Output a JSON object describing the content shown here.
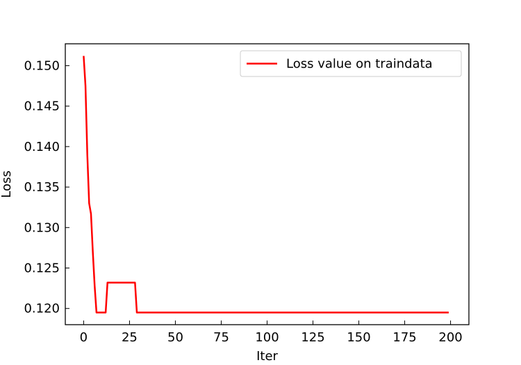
{
  "chart_data": {
    "type": "line",
    "title": "",
    "xlabel": "Iter",
    "ylabel": "Loss",
    "xlim": [
      -10,
      210
    ],
    "ylim": [
      0.118,
      0.1527
    ],
    "xticks": [
      0,
      25,
      50,
      75,
      100,
      125,
      150,
      175,
      200
    ],
    "yticks": [
      0.12,
      0.125,
      0.13,
      0.135,
      0.14,
      0.145,
      0.15
    ],
    "yticks_labels": [
      "0.120",
      "0.125",
      "0.130",
      "0.135",
      "0.140",
      "0.145",
      "0.150"
    ],
    "grid": false,
    "legend": {
      "placement": "top-right",
      "entries": [
        "Loss value on traindata"
      ]
    },
    "series": [
      {
        "name": "Loss value on traindata",
        "color": "#ff0000",
        "x": [
          0,
          1,
          2,
          3,
          4,
          5,
          6,
          7,
          8,
          9,
          10,
          11,
          12,
          13,
          14,
          15,
          16,
          17,
          18,
          19,
          20,
          21,
          22,
          23,
          24,
          25,
          26,
          27,
          28,
          29,
          30,
          35,
          40,
          50,
          60,
          75,
          100,
          125,
          150,
          175,
          199
        ],
        "y": [
          0.1512,
          0.1475,
          0.139,
          0.133,
          0.1317,
          0.127,
          0.1228,
          0.1195,
          0.1195,
          0.1195,
          0.1195,
          0.1195,
          0.1195,
          0.1232,
          0.1232,
          0.1232,
          0.1232,
          0.1232,
          0.1232,
          0.1232,
          0.1232,
          0.1232,
          0.1232,
          0.1232,
          0.1232,
          0.1232,
          0.1232,
          0.1232,
          0.1232,
          0.1195,
          0.1195,
          0.1195,
          0.1195,
          0.1195,
          0.1195,
          0.1195,
          0.1195,
          0.1195,
          0.1195,
          0.1195,
          0.1195
        ]
      }
    ]
  }
}
